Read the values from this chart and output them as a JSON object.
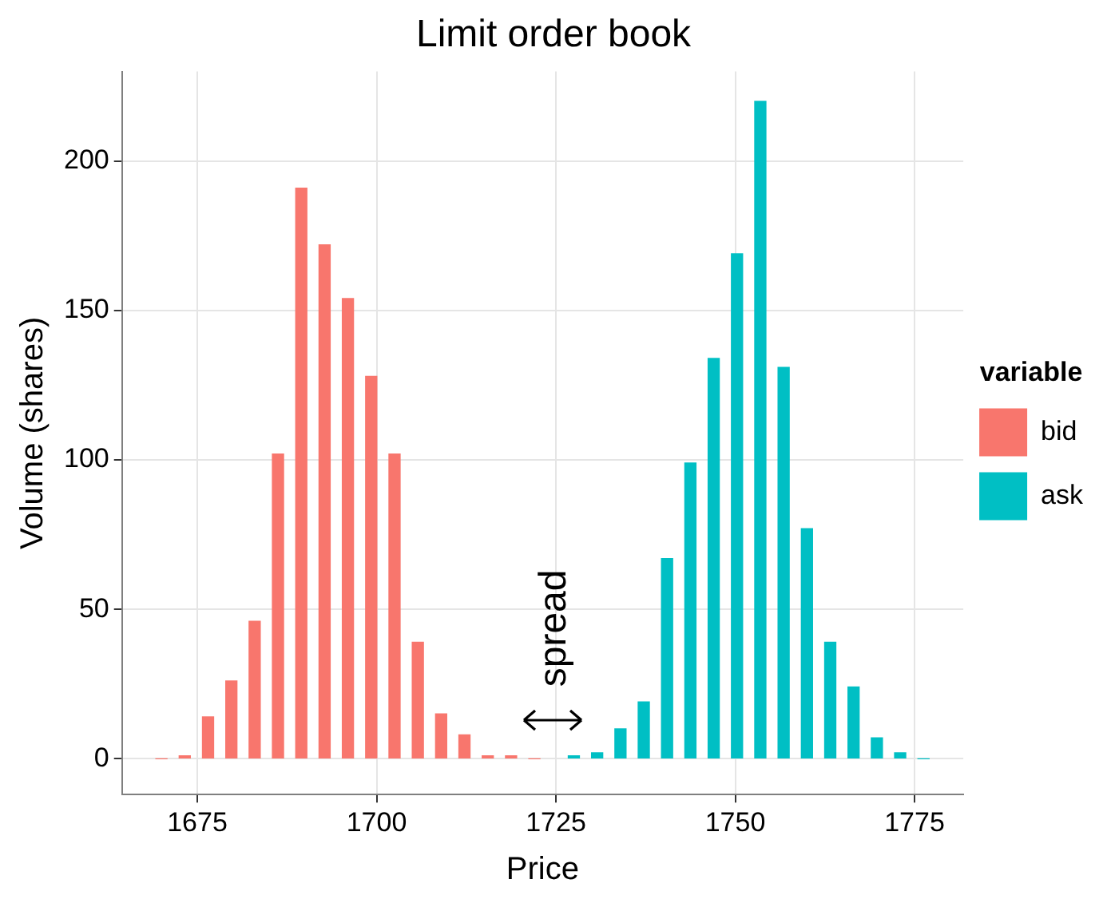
{
  "chart_data": {
    "type": "bar",
    "title": "Limit order book",
    "xlabel": "Price",
    "ylabel": "Volume (shares)",
    "legend_title": "variable",
    "legend": "right",
    "grid": true,
    "xlim": [
      1664.5,
      1781.8
    ],
    "xticks": [
      1675,
      1700,
      1725,
      1750,
      1775
    ],
    "ylim": [
      -12,
      230
    ],
    "yticks": [
      0,
      50,
      100,
      150,
      200
    ],
    "series": [
      {
        "name": "bid",
        "color": "#f8766d",
        "x": [
          1670,
          1673.25,
          1676.5,
          1679.75,
          1683,
          1686.25,
          1689.5,
          1692.75,
          1696,
          1699.25,
          1702.5,
          1705.75,
          1709,
          1712.25,
          1715.5,
          1718.75,
          1722
        ],
        "values": [
          0,
          1,
          14,
          26,
          46,
          102,
          191,
          172,
          154,
          128,
          102,
          39,
          15,
          8,
          1,
          1,
          0
        ]
      },
      {
        "name": "ask",
        "color": "#00bfc4",
        "x": [
          1727.5,
          1730.75,
          1734,
          1737.25,
          1740.5,
          1743.75,
          1747,
          1750.25,
          1753.5,
          1756.75,
          1760,
          1763.25,
          1766.5,
          1769.75,
          1773,
          1776.25
        ],
        "values": [
          1,
          2,
          10,
          19,
          67,
          99,
          134,
          169,
          220,
          131,
          77,
          39,
          24,
          7,
          2,
          0
        ]
      }
    ],
    "annotations": [
      "spread"
    ]
  }
}
